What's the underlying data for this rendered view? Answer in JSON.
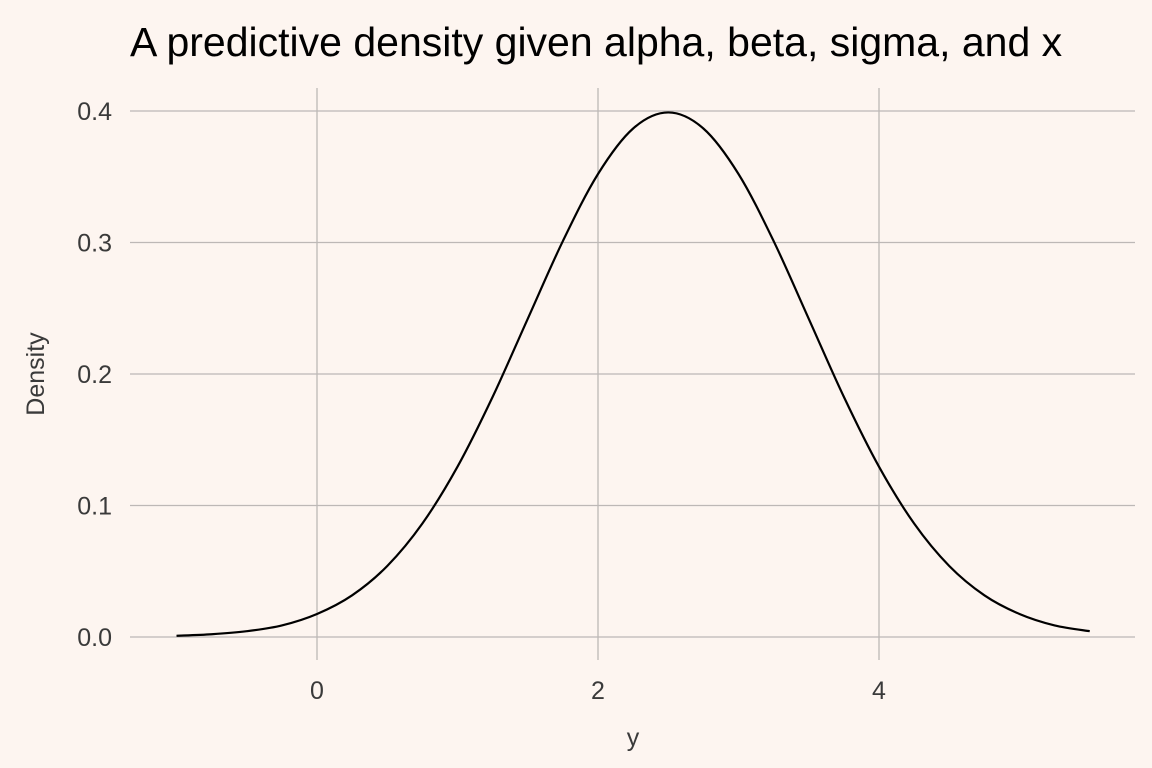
{
  "chart_data": {
    "type": "line",
    "title": "A predictive density given alpha, beta, sigma, and x",
    "xlabel": "y",
    "ylabel": "Density",
    "xlim": [
      -1,
      5.5
    ],
    "ylim": [
      0,
      0.4
    ],
    "x_ticks": [
      0,
      2,
      4
    ],
    "x_tick_labels": [
      "0",
      "2",
      "4"
    ],
    "y_ticks": [
      0.0,
      0.1,
      0.2,
      0.3,
      0.4
    ],
    "y_tick_labels": [
      "0.0",
      "0.1",
      "0.2",
      "0.3",
      "0.4"
    ],
    "grid": true,
    "legend": "none",
    "series": [
      {
        "x": [
          -1.0,
          -0.75,
          -0.5,
          -0.25,
          0.0,
          0.25,
          0.5,
          0.75,
          1.0,
          1.25,
          1.5,
          1.75,
          2.0,
          2.25,
          2.5,
          2.75,
          3.0,
          3.25,
          3.5,
          3.75,
          4.0,
          4.25,
          4.5,
          4.75,
          5.0,
          5.25,
          5.5
        ],
        "y": [
          0.0009,
          0.0021,
          0.0044,
          0.0088,
          0.0175,
          0.0317,
          0.054,
          0.0863,
          0.1295,
          0.1826,
          0.242,
          0.3011,
          0.3521,
          0.3867,
          0.3989,
          0.3867,
          0.3521,
          0.3011,
          0.242,
          0.1826,
          0.1295,
          0.0863,
          0.054,
          0.0317,
          0.0175,
          0.0088,
          0.0044
        ]
      }
    ]
  },
  "colors": {
    "background": "#fdf5f0",
    "grid": "#bdb8b6",
    "line": "#000000",
    "text": "#3a3a3a"
  }
}
